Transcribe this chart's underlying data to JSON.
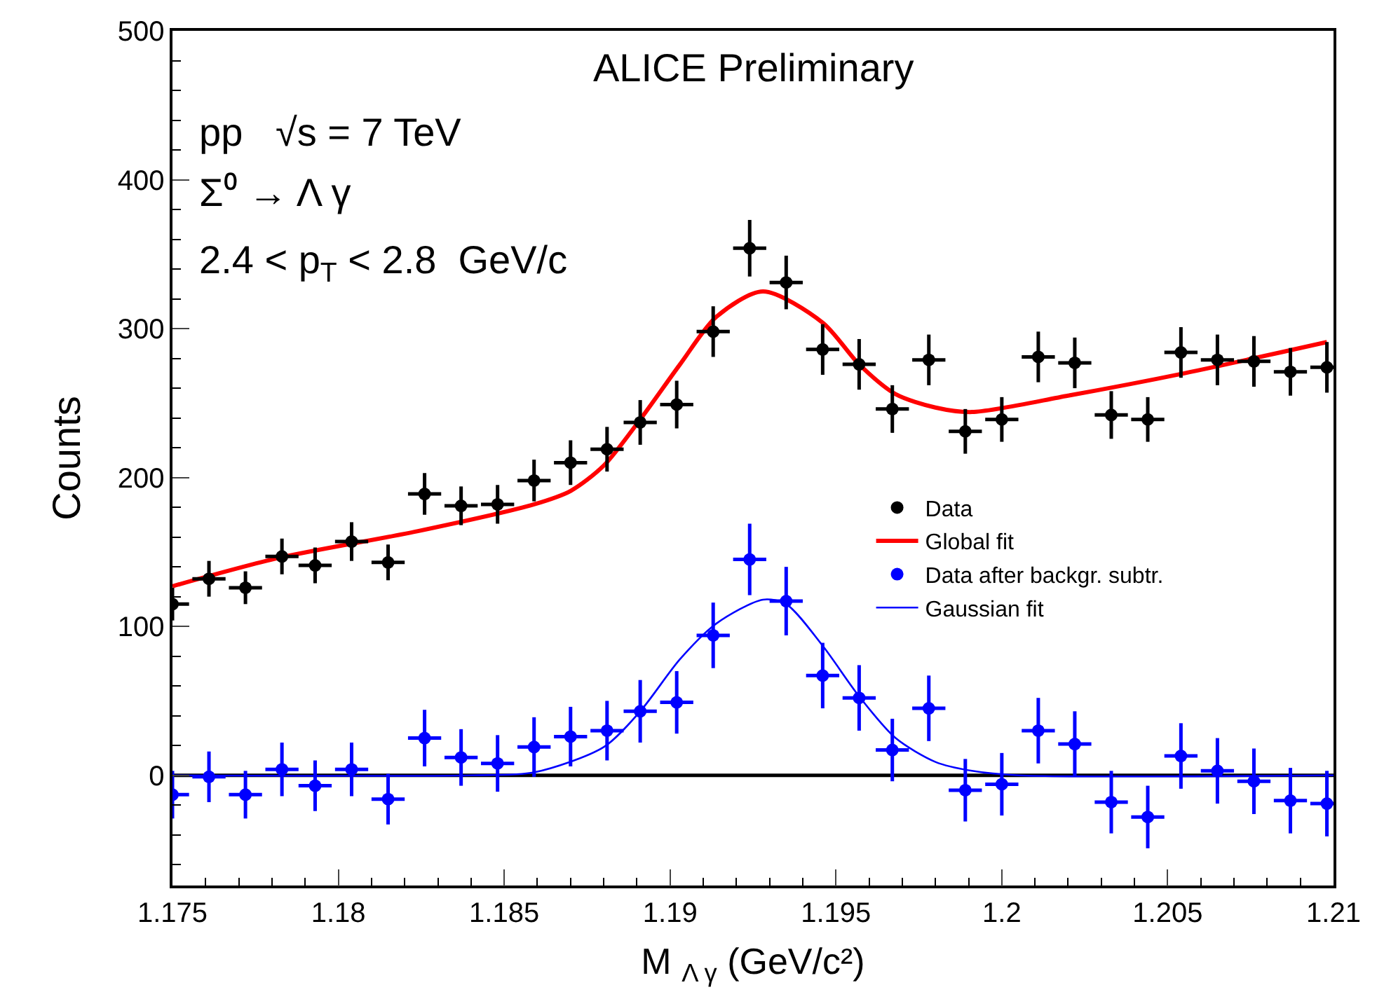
{
  "chart_data": {
    "type": "line",
    "xlabel": "M $_{Λ γ}$ (GeV/c²)",
    "ylabel": "Counts",
    "annotations": [
      "ALICE Preliminary",
      "pp   √s = 7 TeV",
      "Σ⁰ → Λ γ",
      "2.4 < p$_{T}$ < 2.8  GeV/c"
    ],
    "xlim": [
      1.175,
      1.21
    ],
    "xticks": [
      1.175,
      1.18,
      1.185,
      1.19,
      1.195,
      1.2,
      1.205,
      1.21
    ],
    "ylim": [
      -74,
      500
    ],
    "yticks": [
      0,
      100,
      200,
      300,
      400,
      500
    ],
    "grid": false,
    "legend": "right",
    "ref_lines": [
      {
        "axis": "y",
        "value": 0,
        "color": "#000000"
      }
    ],
    "series": [
      {
        "name": "Data",
        "type": "scatter",
        "marker": "circle",
        "color": "#000000",
        "x": [
          1.175,
          1.1761,
          1.1772,
          1.1783,
          1.1793,
          1.1804,
          1.1815,
          1.1826,
          1.1837,
          1.1848,
          1.1859,
          1.187,
          1.1881,
          1.1891,
          1.1902,
          1.1913,
          1.1924,
          1.1935,
          1.1946,
          1.1957,
          1.1967,
          1.1978,
          1.1989,
          1.2,
          1.2011,
          1.2022,
          1.2033,
          1.2044,
          1.2054,
          1.2065,
          1.2076,
          1.2087,
          1.2098
        ],
        "values": [
          115,
          132,
          126,
          147,
          141,
          157,
          143,
          189,
          181,
          182,
          198,
          210,
          219,
          237,
          249,
          298,
          354,
          331,
          286,
          276,
          246,
          279,
          231,
          239,
          281,
          277,
          242,
          239,
          284,
          279,
          278,
          271,
          274
        ],
        "errors": [
          11,
          12,
          11,
          12,
          12,
          13,
          12,
          14,
          13,
          13,
          14,
          15,
          15,
          15,
          16,
          17,
          19,
          18,
          17,
          17,
          16,
          17,
          15,
          15,
          17,
          17,
          16,
          15,
          17,
          17,
          17,
          16,
          17
        ],
        "xerrors": [
          0.0005,
          0.0005,
          0.0005,
          0.0005,
          0.0005,
          0.0005,
          0.0005,
          0.0005,
          0.0005,
          0.0005,
          0.0005,
          0.0005,
          0.0005,
          0.0005,
          0.0005,
          0.0005,
          0.0005,
          0.0005,
          0.0005,
          0.0005,
          0.0005,
          0.0005,
          0.0005,
          0.0005,
          0.0005,
          0.0005,
          0.0005,
          0.0005,
          0.0005,
          0.0005,
          0.0005,
          0.0005,
          0.0005
        ]
      },
      {
        "name": "Global fit",
        "color": "#ff0000",
        "x": [
          1.175,
          1.1782,
          1.1824,
          1.1859,
          1.187,
          1.188,
          1.1891,
          1.1903,
          1.1914,
          1.1928,
          1.1946,
          1.1957,
          1.1968,
          1.198,
          1.1991,
          1.202,
          1.2055,
          1.2098
        ],
        "values": [
          127,
          146,
          164,
          182,
          191,
          208,
          239,
          276,
          308,
          325,
          304,
          276,
          256,
          247,
          244,
          255,
          270,
          291
        ]
      },
      {
        "name": "Data after backgr. subtr.",
        "type": "scatter",
        "marker": "circle",
        "color": "#0000ff",
        "x": [
          1.175,
          1.1761,
          1.1772,
          1.1783,
          1.1793,
          1.1804,
          1.1815,
          1.1826,
          1.1837,
          1.1848,
          1.1859,
          1.187,
          1.1881,
          1.1891,
          1.1902,
          1.1913,
          1.1924,
          1.1935,
          1.1946,
          1.1957,
          1.1967,
          1.1978,
          1.1989,
          1.2,
          1.2011,
          1.2022,
          1.2033,
          1.2044,
          1.2054,
          1.2065,
          1.2076,
          1.2087,
          1.2098
        ],
        "values": [
          -13,
          -1,
          -13,
          4,
          -7,
          4,
          -16,
          25,
          12,
          8,
          19,
          26,
          30,
          43,
          49,
          94,
          145,
          117,
          67,
          52,
          17,
          45,
          -10,
          -6,
          30,
          21,
          -18,
          -28,
          13,
          3,
          -4,
          -17,
          -19
        ],
        "errors": [
          16,
          17,
          16,
          18,
          17,
          18,
          17,
          19,
          19,
          19,
          20,
          20,
          20,
          21,
          21,
          22,
          24,
          23,
          22,
          22,
          21,
          22,
          21,
          21,
          22,
          22,
          21,
          21,
          22,
          22,
          22,
          22,
          22
        ],
        "xerrors": [
          0.0005,
          0.0005,
          0.0005,
          0.0005,
          0.0005,
          0.0005,
          0.0005,
          0.0005,
          0.0005,
          0.0005,
          0.0005,
          0.0005,
          0.0005,
          0.0005,
          0.0005,
          0.0005,
          0.0005,
          0.0005,
          0.0005,
          0.0005,
          0.0005,
          0.0005,
          0.0005,
          0.0005,
          0.0005,
          0.0005,
          0.0005,
          0.0005,
          0.0005,
          0.0005,
          0.0005,
          0.0005,
          0.0005
        ]
      },
      {
        "name": "Gaussian fit",
        "color": "#0000ff",
        "x": [
          1.175,
          1.184,
          1.1859,
          1.188,
          1.1891,
          1.1903,
          1.1914,
          1.1928,
          1.1935,
          1.1946,
          1.1957,
          1.1968,
          1.198,
          1.1991,
          1.2005,
          1.21
        ],
        "values": [
          0,
          0,
          2,
          19,
          43,
          78,
          102,
          118,
          115,
          87,
          53,
          25,
          9,
          3,
          0,
          0
        ]
      }
    ]
  }
}
